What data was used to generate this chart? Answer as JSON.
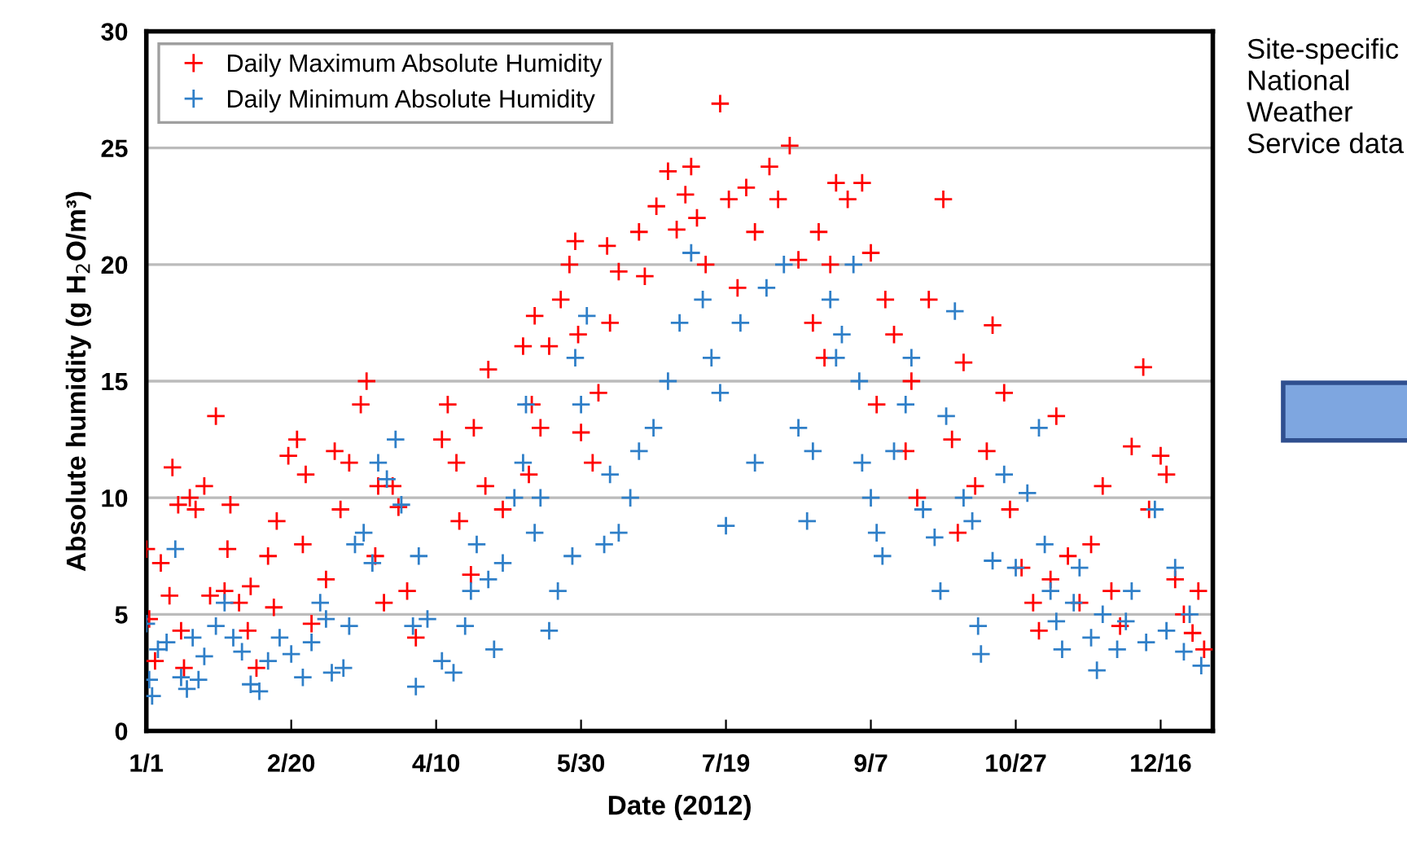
{
  "chart_data": {
    "type": "scatter",
    "xlabel": "Date (2012)",
    "ylabel": "Absolute humidity (g H$_{2}$O/m³)",
    "xlim": [
      "2012-01-01",
      "2013-01-03"
    ],
    "ylim": [
      0,
      30
    ],
    "xticks": [
      {
        "value": "2012-01-01",
        "label": "1/1"
      },
      {
        "value": "2012-02-20",
        "label": "2/20"
      },
      {
        "value": "2012-04-10",
        "label": "4/10"
      },
      {
        "value": "2012-05-30",
        "label": "5/30"
      },
      {
        "value": "2012-07-19",
        "label": "7/19"
      },
      {
        "value": "2012-09-07",
        "label": "9/7"
      },
      {
        "value": "2012-10-27",
        "label": "10/27"
      },
      {
        "value": "2012-12-16",
        "label": "12/16"
      }
    ],
    "yticks": [
      0,
      5,
      10,
      15,
      20,
      25,
      30
    ],
    "grid": "y",
    "legend": "top left",
    "marker": "cross",
    "annotations": [
      "Site-specific National Weather Service data"
    ],
    "series": [
      {
        "name": "Daily Maximum Absolute Humidity",
        "color": "#ff0000",
        "x": [
          "2012-01-01",
          "2012-01-02",
          "2012-01-04",
          "2012-01-06",
          "2012-01-09",
          "2012-01-10",
          "2012-01-12",
          "2012-01-13",
          "2012-01-14",
          "2012-01-16",
          "2012-01-18",
          "2012-01-21",
          "2012-01-23",
          "2012-01-25",
          "2012-01-28",
          "2012-01-29",
          "2012-01-30",
          "2012-02-02",
          "2012-02-05",
          "2012-02-06",
          "2012-02-08",
          "2012-02-12",
          "2012-02-14",
          "2012-02-15",
          "2012-02-19",
          "2012-02-22",
          "2012-02-24",
          "2012-02-25",
          "2012-02-27",
          "2012-03-03",
          "2012-03-06",
          "2012-03-08",
          "2012-03-11",
          "2012-03-15",
          "2012-03-17",
          "2012-03-20",
          "2012-03-21",
          "2012-03-23",
          "2012-03-26",
          "2012-03-28",
          "2012-03-31",
          "2012-04-03",
          "2012-04-12",
          "2012-04-14",
          "2012-04-17",
          "2012-04-18",
          "2012-04-22",
          "2012-04-23",
          "2012-04-27",
          "2012-04-28",
          "2012-05-03",
          "2012-05-10",
          "2012-05-12",
          "2012-05-13",
          "2012-05-14",
          "2012-05-16",
          "2012-05-19",
          "2012-05-23",
          "2012-05-26",
          "2012-05-28",
          "2012-05-29",
          "2012-05-30",
          "2012-06-03",
          "2012-06-05",
          "2012-06-08",
          "2012-06-09",
          "2012-06-12",
          "2012-06-19",
          "2012-06-21",
          "2012-06-25",
          "2012-06-29",
          "2012-07-02",
          "2012-07-05",
          "2012-07-07",
          "2012-07-09",
          "2012-07-12",
          "2012-07-17",
          "2012-07-20",
          "2012-07-23",
          "2012-07-26",
          "2012-07-29",
          "2012-08-03",
          "2012-08-06",
          "2012-08-10",
          "2012-08-13",
          "2012-08-18",
          "2012-08-20",
          "2012-08-22",
          "2012-08-24",
          "2012-08-26",
          "2012-08-30",
          "2012-09-04",
          "2012-09-07",
          "2012-09-09",
          "2012-09-12",
          "2012-09-15",
          "2012-09-19",
          "2012-09-21",
          "2012-09-23",
          "2012-09-27",
          "2012-10-02",
          "2012-10-05",
          "2012-10-07",
          "2012-10-09",
          "2012-10-13",
          "2012-10-17",
          "2012-10-19",
          "2012-10-23",
          "2012-10-25",
          "2012-10-29",
          "2012-11-02",
          "2012-11-04",
          "2012-11-08",
          "2012-11-10",
          "2012-11-14",
          "2012-11-18",
          "2012-11-22",
          "2012-11-26",
          "2012-11-29",
          "2012-12-02",
          "2012-12-06",
          "2012-12-10",
          "2012-12-12",
          "2012-12-16",
          "2012-12-18",
          "2012-12-21",
          "2012-12-24",
          "2012-12-27",
          "2012-12-29",
          "2012-12-31"
        ],
        "values": [
          7.8,
          4.8,
          3,
          7.2,
          5.8,
          11.3,
          9.7,
          4.3,
          2.7,
          10,
          9.5,
          10.5,
          5.8,
          13.5,
          6,
          7.8,
          9.7,
          5.5,
          4.3,
          6.2,
          2.7,
          7.5,
          5.3,
          9,
          11.8,
          12.5,
          8,
          11,
          4.6,
          6.5,
          12,
          9.5,
          11.5,
          14,
          15,
          7.5,
          10.5,
          5.5,
          10.5,
          9.6,
          6,
          4,
          12.5,
          14,
          11.5,
          9,
          6.7,
          13,
          10.5,
          15.5,
          9.5,
          16.5,
          11,
          14,
          17.8,
          13,
          16.5,
          18.5,
          20,
          21,
          17,
          12.8,
          11.5,
          14.5,
          20.8,
          17.5,
          19.7,
          21.4,
          19.5,
          22.5,
          24,
          21.5,
          23,
          24.2,
          22,
          20,
          26.9,
          22.8,
          19,
          23.3,
          21.4,
          24.2,
          22.8,
          25.1,
          20.2,
          17.5,
          21.4,
          16,
          20,
          23.5,
          22.8,
          23.5,
          20.5,
          14,
          18.5,
          17,
          12,
          15,
          10,
          18.5,
          22.8,
          12.5,
          8.5,
          15.8,
          10.5,
          12,
          17.4,
          14.5,
          9.5,
          7,
          5.5,
          4.3,
          6.5,
          13.5,
          7.5,
          5.5,
          8,
          10.5,
          6,
          4.5,
          12.2,
          15.6,
          9.5,
          11.8,
          11,
          6.5,
          5,
          4.2,
          6,
          3.5
        ]
      },
      {
        "name": "Daily Minimum Absolute Humidity",
        "color": "#2f7fc8",
        "x": [
          "2012-01-01",
          "2012-01-02",
          "2012-01-03",
          "2012-01-05",
          "2012-01-08",
          "2012-01-11",
          "2012-01-13",
          "2012-01-15",
          "2012-01-17",
          "2012-01-19",
          "2012-01-21",
          "2012-01-25",
          "2012-01-28",
          "2012-01-31",
          "2012-02-03",
          "2012-02-06",
          "2012-02-09",
          "2012-02-12",
          "2012-02-16",
          "2012-02-20",
          "2012-02-24",
          "2012-02-27",
          "2012-03-01",
          "2012-03-03",
          "2012-03-05",
          "2012-03-09",
          "2012-03-11",
          "2012-03-13",
          "2012-03-16",
          "2012-03-19",
          "2012-03-21",
          "2012-03-24",
          "2012-03-27",
          "2012-03-29",
          "2012-04-02",
          "2012-04-03",
          "2012-04-04",
          "2012-04-07",
          "2012-04-12",
          "2012-04-16",
          "2012-04-20",
          "2012-04-22",
          "2012-04-24",
          "2012-04-28",
          "2012-04-30",
          "2012-05-03",
          "2012-05-07",
          "2012-05-10",
          "2012-05-11",
          "2012-05-14",
          "2012-05-16",
          "2012-05-19",
          "2012-05-22",
          "2012-05-27",
          "2012-05-28",
          "2012-05-30",
          "2012-06-01",
          "2012-06-07",
          "2012-06-09",
          "2012-06-12",
          "2012-06-16",
          "2012-06-19",
          "2012-06-24",
          "2012-06-29",
          "2012-07-03",
          "2012-07-07",
          "2012-07-11",
          "2012-07-14",
          "2012-07-17",
          "2012-07-19",
          "2012-07-24",
          "2012-07-29",
          "2012-08-02",
          "2012-08-08",
          "2012-08-13",
          "2012-08-16",
          "2012-08-18",
          "2012-08-24",
          "2012-08-26",
          "2012-08-28",
          "2012-09-01",
          "2012-09-03",
          "2012-09-04",
          "2012-09-07",
          "2012-09-09",
          "2012-09-11",
          "2012-09-15",
          "2012-09-19",
          "2012-09-21",
          "2012-09-25",
          "2012-09-29",
          "2012-10-01",
          "2012-10-03",
          "2012-10-06",
          "2012-10-09",
          "2012-10-12",
          "2012-10-14",
          "2012-10-15",
          "2012-10-19",
          "2012-10-23",
          "2012-10-27",
          "2012-10-31",
          "2012-11-04",
          "2012-11-06",
          "2012-11-08",
          "2012-11-10",
          "2012-11-12",
          "2012-11-16",
          "2012-11-18",
          "2012-11-22",
          "2012-11-24",
          "2012-11-26",
          "2012-12-01",
          "2012-12-04",
          "2012-12-06",
          "2012-12-11",
          "2012-12-14",
          "2012-12-18",
          "2012-12-21",
          "2012-12-24",
          "2012-12-26",
          "2012-12-30"
        ],
        "values": [
          4.6,
          2.2,
          1.5,
          3.5,
          3.8,
          7.8,
          2.3,
          1.8,
          4,
          2.2,
          3.2,
          4.5,
          5.5,
          4,
          3.4,
          2,
          1.7,
          3,
          4,
          3.3,
          2.3,
          3.8,
          5.5,
          4.8,
          2.5,
          2.7,
          4.5,
          8,
          8.5,
          7.2,
          11.5,
          10.8,
          12.5,
          9.7,
          4.5,
          1.9,
          7.5,
          4.8,
          3,
          2.5,
          4.5,
          6,
          8,
          6.5,
          3.5,
          7.2,
          10,
          11.5,
          14,
          8.5,
          10,
          4.3,
          6,
          7.5,
          16,
          14,
          17.8,
          8,
          11,
          8.5,
          10,
          12,
          13,
          15,
          17.5,
          20.5,
          18.5,
          16,
          14.5,
          8.8,
          17.5,
          11.5,
          19,
          20,
          13,
          9,
          12,
          18.5,
          16,
          17,
          20,
          15,
          11.5,
          10,
          8.5,
          7.5,
          12,
          14,
          16,
          9.5,
          8.3,
          6,
          13.5,
          18,
          10,
          9,
          4.5,
          3.3,
          7.3,
          11,
          7,
          10.2,
          13,
          8,
          6,
          4.7,
          3.5,
          5.5,
          7,
          4,
          2.6,
          5,
          3.5,
          4.7,
          6,
          3.8,
          9.5,
          4.3,
          7,
          3.4,
          5,
          2.8
        ]
      }
    ]
  }
}
